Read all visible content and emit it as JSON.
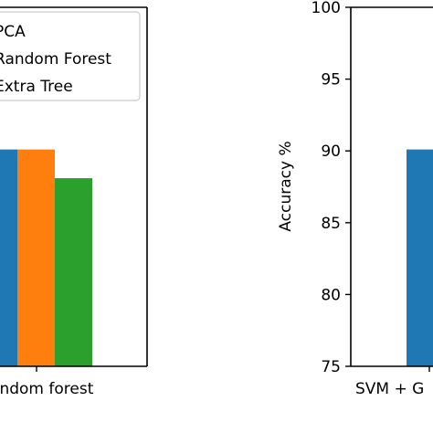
{
  "chart_data": [
    {
      "type": "bar",
      "categories": [
        "Random forest"
      ],
      "series": [
        {
          "name": "PCA",
          "color": "#1f77b4",
          "values": [
            90.1
          ]
        },
        {
          "name": "Random Forest",
          "color": "#ff7f0e",
          "values": [
            90.1
          ]
        },
        {
          "name": "Extra Tree",
          "color": "#2ca02c",
          "values": [
            88.1
          ]
        }
      ],
      "ylim": [
        75,
        100
      ],
      "legend": "top-left"
    },
    {
      "type": "bar",
      "categories": [
        "SVM + G"
      ],
      "series": [
        {
          "color": "#1f77b4",
          "values": [
            90.1
          ]
        }
      ],
      "ylabel": "Accuracy %",
      "yticks": [
        75,
        80,
        85,
        90,
        95,
        100
      ],
      "ylim": [
        75,
        100
      ]
    }
  ]
}
